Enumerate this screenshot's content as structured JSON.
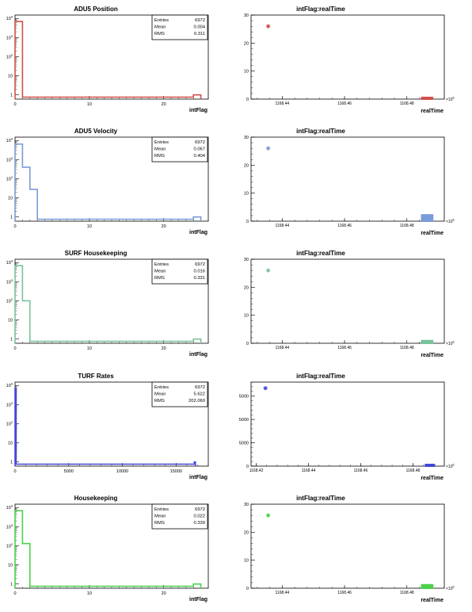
{
  "colors": {
    "adu5_position": "#d2504a",
    "adu5_velocity": "#7b9bd8",
    "surf_housekeeping": "#78c39a",
    "turf_rates": "#4648d6",
    "housekeeping": "#49d24a",
    "axis": "#000000"
  },
  "stats_labels": {
    "entries": "Entries",
    "mean": "Mean",
    "rms": "RMS"
  },
  "exponent_label": "×10",
  "exponent_power": "6",
  "chart_data": [
    {
      "type": "bar",
      "title": "ADU5 Position",
      "xlabel": "intFlag",
      "log_y": true,
      "xlim": [
        0,
        26
      ],
      "ylim": [
        0.6,
        15000
      ],
      "x_ticks": [
        "0",
        "10",
        "20"
      ],
      "y_ticks": [
        {
          "base": "10",
          "exp": "4"
        },
        {
          "base": "10",
          "exp": "3"
        },
        {
          "base": "10",
          "exp": "2"
        },
        {
          "base": "10",
          "exp": ""
        },
        {
          "base": "1",
          "exp": ""
        }
      ],
      "bins": [
        {
          "x0": 0,
          "x1": 1,
          "value": 6948
        },
        {
          "x0": 1,
          "x1": 24,
          "value": 0
        },
        {
          "x0": 24,
          "x1": 25,
          "value": 1
        }
      ],
      "stats": {
        "entries": "6972",
        "mean": "0.004",
        "rms": "0.311"
      },
      "color_key": "adu5_position"
    },
    {
      "type": "scatter",
      "title": "intFlag:realTime",
      "xlabel": "realTime",
      "xlim": [
        1168.43,
        1168.492
      ],
      "ylim": [
        0,
        30
      ],
      "x_ticks": [
        "1168.44",
        "1168.46",
        "1168.48"
      ],
      "y_ticks": [
        "30",
        "20",
        "10",
        "0"
      ],
      "points": [
        {
          "x": 1168.4355,
          "y": 26
        }
      ],
      "dense_cluster": {
        "x0": 1168.4845,
        "x1": 1168.4885,
        "y0": 0,
        "y1": 0.6
      },
      "color_key": "adu5_position"
    },
    {
      "type": "bar",
      "title": "ADU5 Velocity",
      "xlabel": "intFlag",
      "log_y": true,
      "xlim": [
        0,
        26
      ],
      "ylim": [
        0.6,
        15000
      ],
      "x_ticks": [
        "0",
        "10",
        "20"
      ],
      "y_ticks": [
        {
          "base": "10",
          "exp": "4"
        },
        {
          "base": "10",
          "exp": "3"
        },
        {
          "base": "10",
          "exp": "2"
        },
        {
          "base": "10",
          "exp": ""
        },
        {
          "base": "1",
          "exp": ""
        }
      ],
      "bins": [
        {
          "x0": 0,
          "x1": 1,
          "value": 6500
        },
        {
          "x0": 1,
          "x1": 2,
          "value": 400
        },
        {
          "x0": 2,
          "x1": 3,
          "value": 28
        },
        {
          "x0": 3,
          "x1": 24,
          "value": 0
        },
        {
          "x0": 24,
          "x1": 25,
          "value": 1
        }
      ],
      "stats": {
        "entries": "6972",
        "mean": "0.067",
        "rms": "0.404"
      },
      "color_key": "adu5_velocity"
    },
    {
      "type": "scatter",
      "title": "intFlag:realTime",
      "xlabel": "realTime",
      "xlim": [
        1168.43,
        1168.492
      ],
      "ylim": [
        0,
        30
      ],
      "x_ticks": [
        "1168.44",
        "1168.46",
        "1168.48"
      ],
      "y_ticks": [
        "30",
        "20",
        "10",
        "0"
      ],
      "points": [
        {
          "x": 1168.4355,
          "y": 26
        }
      ],
      "dense_cluster": {
        "x0": 1168.4845,
        "x1": 1168.4885,
        "y0": 0,
        "y1": 2.5
      },
      "color_key": "adu5_velocity"
    },
    {
      "type": "bar",
      "title": "SURF Housekeeping",
      "xlabel": "intFlag",
      "log_y": true,
      "xlim": [
        0,
        26
      ],
      "ylim": [
        0.6,
        15000
      ],
      "x_ticks": [
        "0",
        "10",
        "20"
      ],
      "y_ticks": [
        {
          "base": "10",
          "exp": "4"
        },
        {
          "base": "10",
          "exp": "3"
        },
        {
          "base": "10",
          "exp": "2"
        },
        {
          "base": "10",
          "exp": ""
        },
        {
          "base": "1",
          "exp": ""
        }
      ],
      "bins": [
        {
          "x0": 0,
          "x1": 1,
          "value": 6870
        },
        {
          "x0": 1,
          "x1": 2,
          "value": 100
        },
        {
          "x0": 2,
          "x1": 24,
          "value": 0
        },
        {
          "x0": 24,
          "x1": 25,
          "value": 1
        }
      ],
      "stats": {
        "entries": "6972",
        "mean": "0.016",
        "rms": "0.331"
      },
      "color_key": "surf_housekeeping"
    },
    {
      "type": "scatter",
      "title": "intFlag:realTime",
      "xlabel": "realTime",
      "xlim": [
        1168.43,
        1168.492
      ],
      "ylim": [
        0,
        30
      ],
      "x_ticks": [
        "1168.44",
        "1168.46",
        "1168.48"
      ],
      "y_ticks": [
        "30",
        "20",
        "10",
        "0"
      ],
      "points": [
        {
          "x": 1168.4355,
          "y": 26
        }
      ],
      "dense_cluster": {
        "x0": 1168.4845,
        "x1": 1168.4885,
        "y0": 0,
        "y1": 1.2
      },
      "color_key": "surf_housekeeping"
    },
    {
      "type": "bar",
      "title": "TURF Rates",
      "xlabel": "intFlag",
      "log_y": true,
      "xlim": [
        0,
        18000
      ],
      "ylim": [
        0.6,
        15000
      ],
      "x_ticks": [
        "0",
        "5000",
        "10000",
        "15000"
      ],
      "y_ticks": [
        {
          "base": "10",
          "exp": "4"
        },
        {
          "base": "10",
          "exp": "3"
        },
        {
          "base": "10",
          "exp": "2"
        },
        {
          "base": "10",
          "exp": ""
        },
        {
          "base": "1",
          "exp": ""
        }
      ],
      "bins": [
        {
          "x0": 0,
          "x1": 100,
          "value": 6965
        },
        {
          "x0": 100,
          "x1": 16700,
          "value": 0
        },
        {
          "x0": 16700,
          "x1": 16800,
          "value": 1
        }
      ],
      "stats": {
        "entries": "6972",
        "mean": "5.622",
        "rms": "202.060"
      },
      "color_key": "turf_rates"
    },
    {
      "type": "scatter",
      "title": "intFlag:realTime",
      "xlabel": "realTime",
      "xlim": [
        1168.418,
        1168.492
      ],
      "ylim": [
        0,
        18000
      ],
      "x_ticks": [
        "1168.42",
        "1168.44",
        "1168.46",
        "1168.48"
      ],
      "y_ticks": [
        "5000",
        "5000",
        "5000",
        "0"
      ],
      "points": [
        {
          "x": 1168.4235,
          "y": 16700
        }
      ],
      "dense_cluster": {
        "x0": 1168.4845,
        "x1": 1168.4885,
        "y0": 0,
        "y1": 200
      },
      "color_key": "turf_rates"
    },
    {
      "type": "bar",
      "title": "Housekeeping",
      "xlabel": "intFlag",
      "log_y": true,
      "xlim": [
        0,
        26
      ],
      "ylim": [
        0.6,
        15000
      ],
      "x_ticks": [
        "0",
        "10",
        "20"
      ],
      "y_ticks": [
        {
          "base": "10",
          "exp": "4"
        },
        {
          "base": "10",
          "exp": "3"
        },
        {
          "base": "10",
          "exp": "2"
        },
        {
          "base": "10",
          "exp": ""
        },
        {
          "base": "1",
          "exp": ""
        }
      ],
      "bins": [
        {
          "x0": 0,
          "x1": 1,
          "value": 6840
        },
        {
          "x0": 1,
          "x1": 2,
          "value": 130
        },
        {
          "x0": 2,
          "x1": 24,
          "value": 0
        },
        {
          "x0": 24,
          "x1": 25,
          "value": 1
        }
      ],
      "stats": {
        "entries": "6972",
        "mean": "0.022",
        "rms": "0.339"
      },
      "color_key": "housekeeping"
    },
    {
      "type": "scatter",
      "title": "intFlag:realTime",
      "xlabel": "realTime",
      "xlim": [
        1168.43,
        1168.492
      ],
      "ylim": [
        0,
        30
      ],
      "x_ticks": [
        "1168.44",
        "1168.46",
        "1168.48"
      ],
      "y_ticks": [
        "30",
        "20",
        "10",
        "0"
      ],
      "points": [
        {
          "x": 1168.4355,
          "y": 26
        }
      ],
      "dense_cluster": {
        "x0": 1168.4845,
        "x1": 1168.4885,
        "y0": 0,
        "y1": 1.5
      },
      "color_key": "housekeeping"
    }
  ]
}
